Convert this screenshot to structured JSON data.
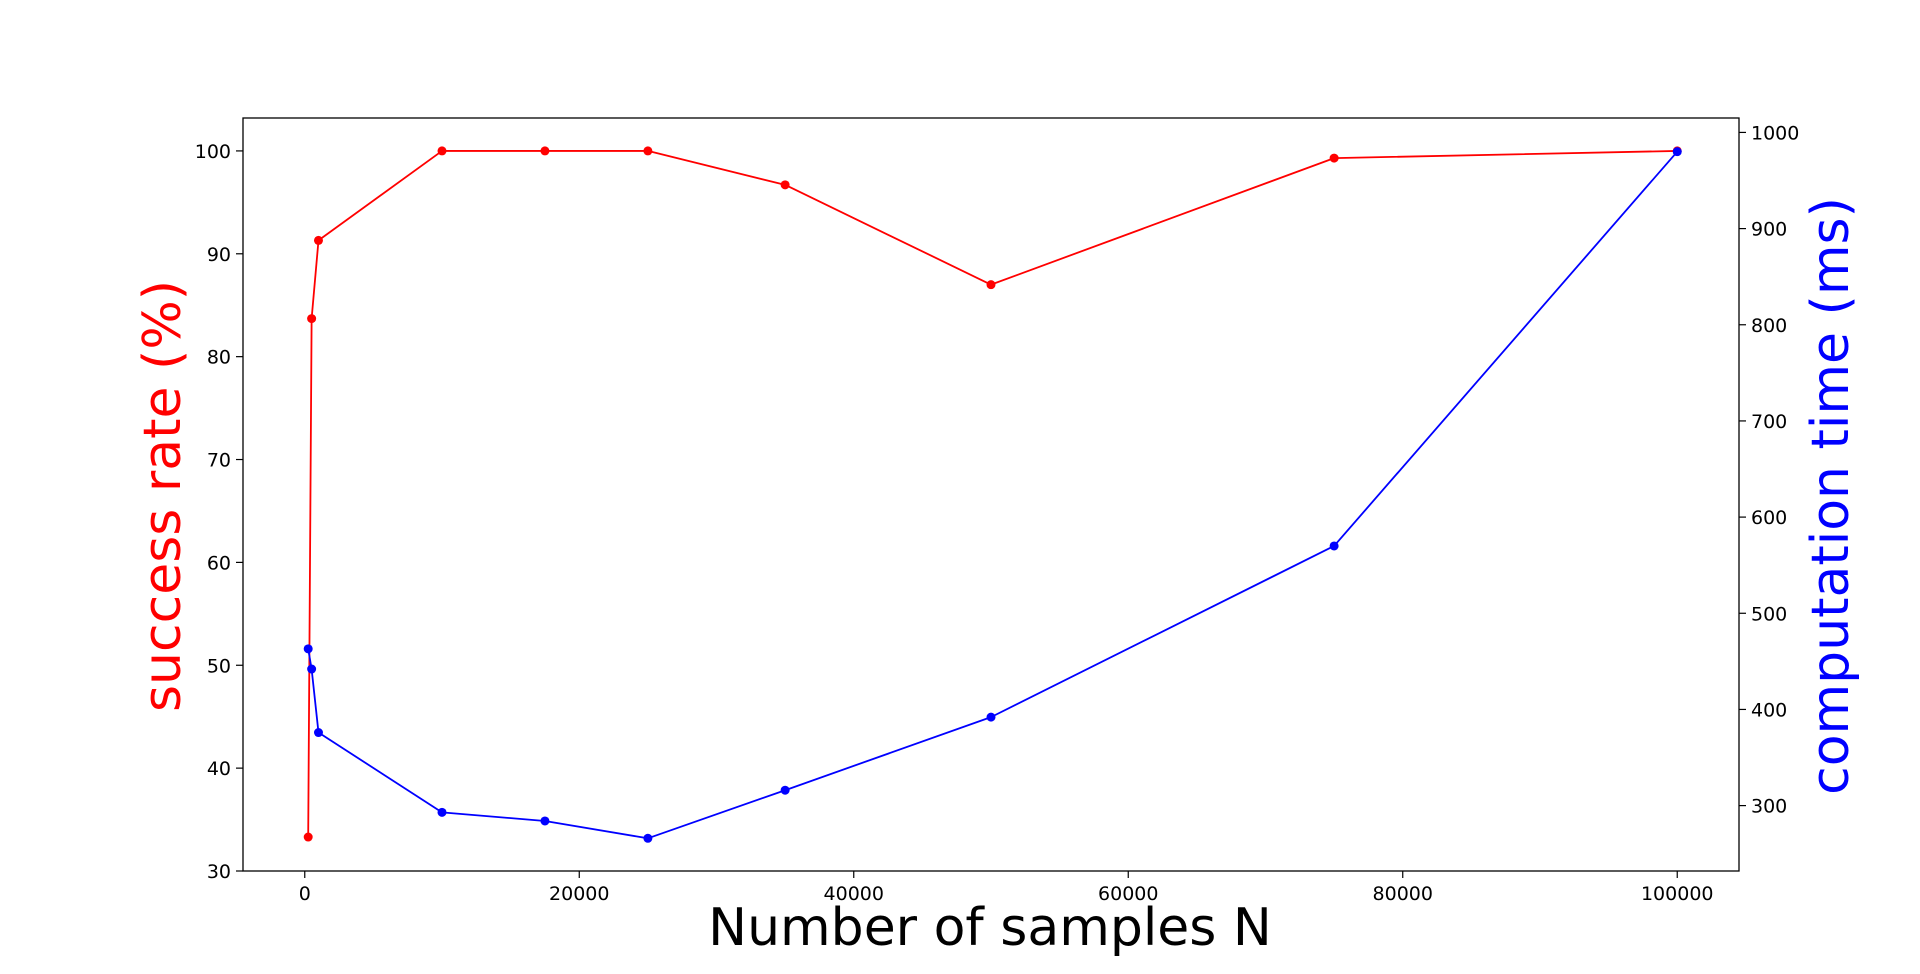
{
  "chart_data": {
    "type": "line",
    "xlabel": "Number of samples N",
    "ylabel_left": "success rate (%)",
    "ylabel_right": "computation time (ms)",
    "grid": false,
    "xlim": [
      -4500,
      104500
    ],
    "ylim_left": [
      30,
      103.2
    ],
    "ylim_right": [
      232,
      1015
    ],
    "x_ticks": [
      0,
      20000,
      40000,
      60000,
      80000,
      100000
    ],
    "y_left_ticks": [
      30,
      40,
      50,
      60,
      70,
      80,
      90,
      100
    ],
    "y_right_ticks": [
      300,
      400,
      500,
      600,
      700,
      800,
      900,
      1000
    ],
    "series": [
      {
        "name": "success rate",
        "axis": "left",
        "color": "#ff0000",
        "x": [
          250,
          500,
          1000,
          10000,
          17500,
          25000,
          35000,
          50000,
          75000,
          100000
        ],
        "y": [
          33.3,
          83.7,
          91.3,
          100,
          100,
          100,
          96.7,
          87.0,
          99.3,
          100
        ]
      },
      {
        "name": "computation time",
        "axis": "right",
        "color": "#0000ff",
        "x": [
          250,
          500,
          1000,
          10000,
          17500,
          25000,
          35000,
          50000,
          75000,
          100000
        ],
        "y": [
          463,
          442,
          376,
          293,
          284,
          266,
          316,
          392,
          570,
          980
        ]
      }
    ]
  }
}
